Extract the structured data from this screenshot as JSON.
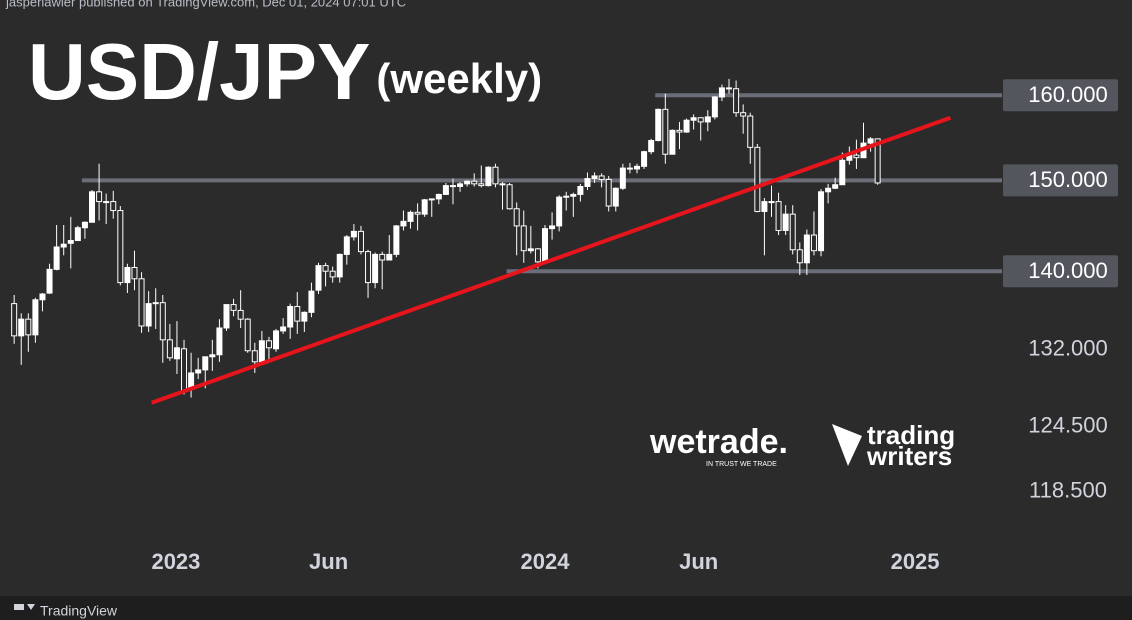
{
  "header": "jasperlawler published on TradingView.com, Dec 01, 2024 07:01 UTC",
  "footer": "TradingView",
  "chart_data": {
    "type": "candlestick",
    "title": "USD/JPY",
    "subtitle": "(weekly)",
    "x": [
      "2022-07-25",
      "2022-08-01",
      "2022-08-08",
      "2022-08-15",
      "2022-08-22",
      "2022-08-29",
      "2022-09-05",
      "2022-09-12",
      "2022-09-19",
      "2022-09-26",
      "2022-10-03",
      "2022-10-10",
      "2022-10-17",
      "2022-10-24",
      "2022-10-31",
      "2022-11-07",
      "2022-11-14",
      "2022-11-21",
      "2022-11-28",
      "2022-12-05",
      "2022-12-12",
      "2022-12-19",
      "2022-12-26",
      "2023-01-02",
      "2023-01-09",
      "2023-01-16",
      "2023-01-23",
      "2023-01-30",
      "2023-02-06",
      "2023-02-13",
      "2023-02-20",
      "2023-02-27",
      "2023-03-06",
      "2023-03-13",
      "2023-03-20",
      "2023-03-27",
      "2023-04-03",
      "2023-04-10",
      "2023-04-17",
      "2023-04-24",
      "2023-05-01",
      "2023-05-08",
      "2023-05-15",
      "2023-05-22",
      "2023-05-29",
      "2023-06-05",
      "2023-06-12",
      "2023-06-19",
      "2023-06-26",
      "2023-07-03",
      "2023-07-10",
      "2023-07-17",
      "2023-07-24",
      "2023-07-31",
      "2023-08-07",
      "2023-08-14",
      "2023-08-21",
      "2023-08-28",
      "2023-09-04",
      "2023-09-11",
      "2023-09-18",
      "2023-09-25",
      "2023-10-02",
      "2023-10-09",
      "2023-10-16",
      "2023-10-23",
      "2023-10-30",
      "2023-11-06",
      "2023-11-13",
      "2023-11-20",
      "2023-11-27",
      "2023-12-04",
      "2023-12-11",
      "2023-12-18",
      "2023-12-25",
      "2024-01-01",
      "2024-01-08",
      "2024-01-15",
      "2024-01-22",
      "2024-01-29",
      "2024-02-05",
      "2024-02-12",
      "2024-02-19",
      "2024-02-26",
      "2024-03-04",
      "2024-03-11",
      "2024-03-18",
      "2024-03-25",
      "2024-04-01",
      "2024-04-08",
      "2024-04-15",
      "2024-04-22",
      "2024-04-29",
      "2024-05-06",
      "2024-05-13",
      "2024-05-20",
      "2024-05-27",
      "2024-06-03",
      "2024-06-10",
      "2024-06-17",
      "2024-06-24",
      "2024-07-01",
      "2024-07-08",
      "2024-07-15",
      "2024-07-22",
      "2024-07-29",
      "2024-08-05",
      "2024-08-12",
      "2024-08-19",
      "2024-08-26",
      "2024-09-02",
      "2024-09-09",
      "2024-09-16",
      "2024-09-23",
      "2024-09-30",
      "2024-10-07",
      "2024-10-14",
      "2024-10-21",
      "2024-10-28",
      "2024-11-04",
      "2024-11-11",
      "2024-11-18",
      "2024-11-25"
    ],
    "series": [
      {
        "up_color": "#ffffff",
        "down_color": "#2b2b2b",
        "open": [
          136.6,
          133.3,
          135.0,
          133.4,
          137.0,
          137.7,
          140.2,
          142.6,
          143.0,
          143.3,
          144.7,
          145.3,
          148.7,
          147.6,
          147.6,
          146.6,
          138.8,
          140.4,
          139.2,
          134.3,
          136.6,
          136.7,
          132.9,
          131.0,
          132.0,
          128.0,
          129.6,
          129.9,
          131.2,
          131.4,
          134.1,
          136.5,
          135.9,
          135.0,
          131.8,
          130.7,
          132.8,
          132.0,
          133.8,
          134.2,
          136.3,
          134.8,
          135.7,
          138.0,
          140.6,
          140.0,
          139.4,
          141.8,
          143.7,
          144.3,
          142.1,
          138.8,
          141.8,
          141.2,
          141.8,
          144.9,
          145.4,
          146.4,
          146.2,
          147.8,
          147.9,
          148.4,
          149.4,
          149.3,
          149.6,
          149.9,
          149.6,
          149.4,
          151.5,
          149.6,
          149.5,
          146.8,
          144.9,
          142.2,
          142.4,
          141.0,
          144.6,
          144.9,
          148.1,
          148.2,
          148.4,
          149.3,
          150.2,
          150.5,
          150.1,
          147.1,
          149.1,
          151.4,
          151.3,
          151.6,
          153.3,
          154.6,
          158.3,
          153.0,
          155.8,
          155.6,
          157.0,
          157.3,
          156.8,
          157.4,
          159.8,
          160.9,
          160.8,
          157.9,
          157.5,
          153.8,
          146.5,
          147.6,
          147.6,
          144.4,
          146.2,
          142.3,
          140.9,
          143.9,
          142.2,
          148.7,
          149.1,
          149.5,
          152.3,
          152.9,
          152.6,
          154.3,
          154.8
        ],
        "high": [
          137.5,
          135.6,
          135.6,
          137.2,
          137.7,
          140.8,
          145.0,
          145.0,
          145.9,
          144.9,
          145.4,
          148.9,
          151.9,
          148.5,
          148.8,
          147.1,
          140.8,
          142.2,
          139.9,
          137.9,
          138.2,
          137.5,
          134.5,
          134.8,
          132.9,
          131.6,
          131.1,
          131.2,
          132.9,
          135.0,
          136.5,
          137.1,
          138.0,
          135.1,
          132.6,
          133.8,
          133.2,
          134.0,
          135.1,
          136.6,
          137.8,
          135.8,
          138.8,
          140.9,
          140.9,
          140.5,
          141.9,
          143.9,
          145.1,
          144.9,
          142.3,
          142.0,
          142.1,
          143.9,
          145.0,
          146.6,
          146.6,
          147.4,
          147.9,
          147.9,
          148.5,
          149.7,
          150.2,
          149.8,
          150.0,
          150.8,
          151.7,
          151.6,
          151.9,
          149.8,
          149.7,
          147.5,
          146.6,
          144.9,
          142.5,
          145.0,
          146.4,
          148.3,
          148.7,
          148.6,
          149.6,
          150.9,
          150.9,
          150.8,
          150.5,
          149.2,
          151.9,
          152.0,
          151.9,
          153.4,
          154.8,
          158.4,
          160.2,
          155.9,
          156.8,
          157.2,
          157.7,
          157.3,
          158.2,
          159.9,
          161.3,
          162.0,
          161.8,
          158.9,
          157.9,
          154.2,
          148.0,
          149.4,
          148.6,
          147.2,
          147.2,
          143.1,
          144.5,
          146.5,
          149.0,
          149.6,
          150.3,
          153.2,
          153.9,
          154.7,
          156.7,
          155.0,
          154.8
        ],
        "low": [
          132.5,
          130.4,
          131.7,
          132.6,
          135.8,
          137.6,
          140.1,
          141.7,
          140.3,
          143.3,
          143.5,
          145.3,
          145.5,
          145.1,
          145.7,
          138.5,
          137.7,
          138.0,
          133.6,
          133.7,
          134.0,
          130.6,
          130.8,
          129.5,
          127.5,
          127.2,
          129.0,
          128.1,
          129.8,
          130.7,
          133.8,
          135.3,
          134.1,
          131.6,
          129.6,
          130.4,
          130.6,
          131.7,
          133.5,
          133.0,
          133.5,
          133.7,
          135.2,
          137.6,
          138.4,
          138.8,
          138.8,
          140.7,
          143.3,
          141.8,
          137.2,
          138.2,
          138.1,
          141.2,
          141.5,
          144.4,
          144.6,
          144.4,
          145.9,
          145.9,
          147.3,
          148.4,
          147.3,
          148.7,
          149.3,
          149.3,
          149.2,
          149.3,
          149.2,
          146.7,
          146.7,
          141.7,
          140.9,
          141.9,
          140.3,
          140.8,
          143.4,
          144.3,
          146.6,
          145.9,
          147.6,
          148.9,
          149.7,
          149.2,
          146.5,
          146.5,
          148.9,
          150.8,
          150.8,
          151.3,
          153.0,
          154.5,
          151.9,
          153.0,
          153.6,
          155.5,
          155.9,
          154.6,
          155.7,
          157.1,
          159.3,
          160.2,
          157.4,
          155.4,
          151.9,
          146.4,
          141.7,
          145.9,
          143.9,
          143.9,
          141.8,
          139.6,
          139.6,
          141.7,
          141.6,
          147.4,
          149.0,
          149.5,
          151.8,
          151.3,
          152.6,
          153.3,
          149.5
        ],
        "close": [
          133.3,
          135.0,
          133.4,
          137.0,
          137.6,
          140.2,
          142.6,
          142.9,
          143.3,
          144.7,
          145.3,
          148.7,
          147.6,
          147.5,
          146.6,
          138.8,
          140.4,
          139.2,
          134.3,
          136.6,
          136.7,
          132.9,
          131.1,
          132.1,
          127.9,
          129.6,
          129.9,
          131.2,
          131.4,
          134.1,
          136.5,
          135.9,
          135.0,
          131.8,
          130.7,
          132.8,
          132.1,
          133.8,
          134.2,
          136.3,
          134.8,
          135.7,
          137.9,
          140.6,
          140.0,
          139.4,
          141.8,
          143.7,
          144.3,
          142.1,
          138.8,
          141.8,
          141.2,
          141.8,
          144.9,
          145.4,
          146.4,
          146.2,
          147.8,
          147.9,
          148.4,
          149.4,
          149.3,
          149.6,
          149.9,
          149.6,
          149.4,
          151.5,
          149.6,
          149.5,
          146.8,
          144.9,
          142.2,
          142.4,
          141.0,
          144.6,
          144.9,
          148.1,
          148.2,
          148.4,
          149.3,
          150.2,
          150.5,
          150.1,
          147.1,
          149.1,
          151.4,
          151.3,
          151.6,
          153.3,
          154.6,
          158.3,
          153.0,
          155.8,
          155.6,
          157.0,
          157.3,
          156.8,
          157.4,
          159.8,
          160.9,
          160.8,
          157.9,
          157.5,
          153.8,
          146.5,
          147.6,
          147.6,
          144.4,
          146.2,
          142.3,
          140.9,
          143.9,
          142.2,
          148.7,
          149.1,
          149.5,
          152.3,
          152.9,
          152.6,
          154.3,
          154.8,
          149.7
        ]
      }
    ],
    "xlim": [
      "2022-07-11",
      "2025-03-26"
    ],
    "xticks": [
      {
        "value": "2023-01-01",
        "label": "2023"
      },
      {
        "value": "2023-06-01",
        "label": "Jun"
      },
      {
        "value": "2024-01-01",
        "label": "2024"
      },
      {
        "value": "2024-06-01",
        "label": "Jun"
      },
      {
        "value": "2025-01-01",
        "label": "2025"
      }
    ],
    "ylim": [
      109.5,
      172
    ],
    "log_scale": true,
    "grid": false,
    "yticks": [
      {
        "value": 160,
        "label": "160.000"
      },
      {
        "value": 150,
        "label": "150.000"
      },
      {
        "value": 140,
        "label": "140.000"
      },
      {
        "value": 132,
        "label": "132.000"
      },
      {
        "value": 124.5,
        "label": "124.500"
      },
      {
        "value": 118.5,
        "label": "118.500"
      }
    ],
    "levels": [
      {
        "value": 160,
        "start": "2024-04-19"
      },
      {
        "value": 150,
        "start": "2022-09-30"
      },
      {
        "value": 140,
        "start": "2023-11-24"
      }
    ],
    "level_color": "#6b6e78",
    "trendline": {
      "x": [
        "2022-12-08",
        "2025-02-05"
      ],
      "y": [
        126.7,
        157.3
      ],
      "color": "#e8141c"
    },
    "watermarks": [
      "wetrade.",
      "IN TRUST WE TRADE",
      "trading",
      "writers"
    ]
  }
}
